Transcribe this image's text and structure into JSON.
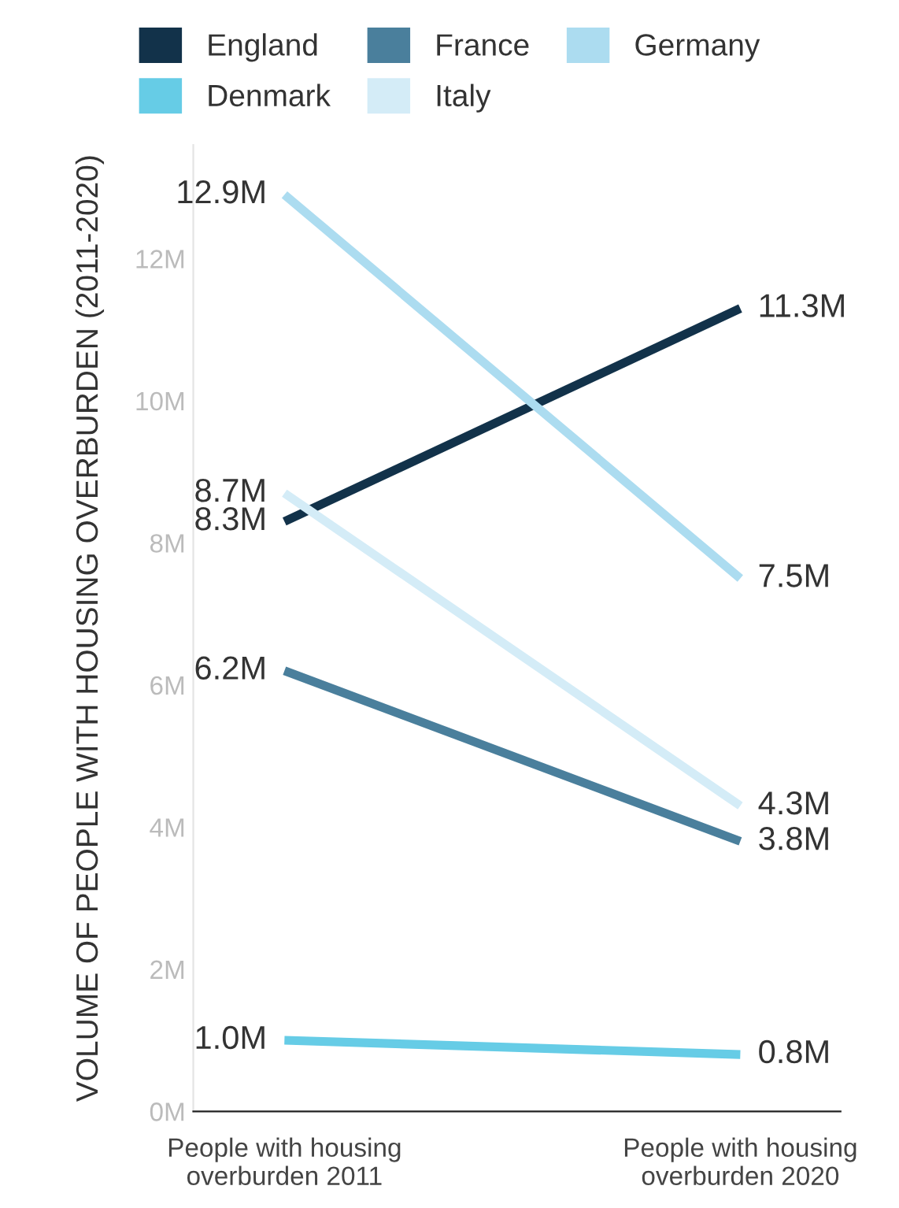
{
  "chart_data": {
    "type": "line",
    "ylabel": "VOLUME OF PEOPLE WITH HOUSING OVERBURDEN (2011-2020)",
    "categories": [
      "People with housing\noverburden 2011",
      "People with housing\noverburden 2020"
    ],
    "series": [
      {
        "name": "England",
        "color": "#12324a",
        "values": [
          8.3,
          11.3
        ],
        "value_labels": [
          "8.3M",
          "11.3M"
        ]
      },
      {
        "name": "France",
        "color": "#4a7f9c",
        "values": [
          6.2,
          3.8
        ],
        "value_labels": [
          "6.2M",
          "3.8M"
        ]
      },
      {
        "name": "Germany",
        "color": "#acdcf0",
        "values": [
          12.9,
          7.5
        ],
        "value_labels": [
          "12.9M",
          "7.5M"
        ]
      },
      {
        "name": "Denmark",
        "color": "#66cce6",
        "values": [
          1.0,
          0.8
        ],
        "value_labels": [
          "1.0M",
          "0.8M"
        ]
      },
      {
        "name": "Italy",
        "color": "#d4ecf7",
        "values": [
          8.7,
          4.3
        ],
        "value_labels": [
          "8.7M",
          "4.3M"
        ]
      }
    ],
    "ylim": [
      0,
      13.6
    ],
    "yticks": [
      {
        "value": 0,
        "label": "0M"
      },
      {
        "value": 2,
        "label": "2M"
      },
      {
        "value": 4,
        "label": "4M"
      },
      {
        "value": 6,
        "label": "6M"
      },
      {
        "value": 8,
        "label": "8M"
      },
      {
        "value": 10,
        "label": "10M"
      },
      {
        "value": 12,
        "label": "12M"
      }
    ],
    "legend": "top",
    "grid": false,
    "marker": "none",
    "line_style": "solid"
  }
}
